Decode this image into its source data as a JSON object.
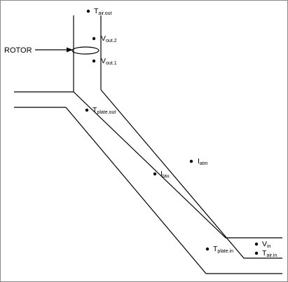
{
  "diagram": {
    "rotor_label": "ROTOR",
    "points": [
      {
        "id": "tair-out",
        "symbol": "T",
        "sub": "air.out"
      },
      {
        "id": "vout2",
        "symbol": "V",
        "sub": "out.2"
      },
      {
        "id": "vout1",
        "symbol": "V",
        "sub": "out.1"
      },
      {
        "id": "tplate-out",
        "symbol": "T",
        "sub": "plate.out"
      },
      {
        "id": "itau",
        "symbol": "I",
        "sub": "tau"
      },
      {
        "id": "iatm",
        "symbol": "I",
        "sub": "atm"
      },
      {
        "id": "vin",
        "symbol": "V",
        "sub": "in"
      },
      {
        "id": "tplate-in",
        "symbol": "T",
        "sub": "plate.in"
      },
      {
        "id": "tair-in",
        "symbol": "T",
        "sub": "air.in"
      }
    ]
  }
}
